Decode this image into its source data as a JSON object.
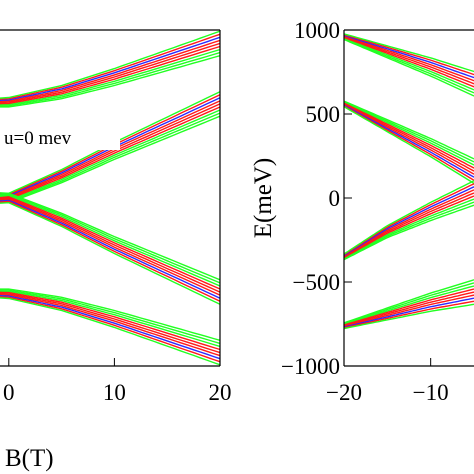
{
  "chart_data": [
    {
      "type": "line",
      "xlabel": "B(T)",
      "ylabel": "",
      "xlim": [
        -5,
        20
      ],
      "ylim": [
        -1000,
        1000
      ],
      "xticks": [
        {
          "value": 0,
          "label": "0"
        },
        {
          "value": 10,
          "label": "10"
        },
        {
          "value": 20,
          "label": "20"
        }
      ],
      "annotation": "u=0 mev",
      "grid": false,
      "series_colors": {
        "red": "#ff1a1a",
        "green": "#22ff22",
        "blue": "#2a2aff"
      },
      "band_groups": [
        {
          "name": "",
          "x": [
            -5,
            0,
            5,
            10,
            15,
            20
          ],
          "y": [
            560,
            570,
            630,
            720,
            820,
            920
          ]
        },
        {
          "name": "",
          "x": [
            -5,
            0,
            5,
            10,
            15,
            20
          ],
          "y": [
            -560,
            -570,
            -630,
            -720,
            -820,
            -920
          ]
        },
        {
          "name": "",
          "x": [
            -5,
            0,
            5,
            10,
            15,
            20
          ],
          "y": [
            30,
            0,
            130,
            280,
            420,
            560
          ]
        },
        {
          "name": "",
          "x": [
            -5,
            0,
            5,
            10,
            15,
            20
          ],
          "y": [
            -30,
            0,
            -130,
            -280,
            -420,
            -560
          ]
        }
      ]
    },
    {
      "type": "line",
      "xlabel": "",
      "ylabel": "E(meV)",
      "xlim": [
        -20,
        -5
      ],
      "ylim": [
        -1000,
        1000
      ],
      "xticks": [
        {
          "value": -20,
          "label": "−20"
        },
        {
          "value": -10,
          "label": "−10"
        }
      ],
      "yticks": [
        {
          "value": 1000,
          "label": "1000"
        },
        {
          "value": 500,
          "label": "500"
        },
        {
          "value": 0,
          "label": "0"
        },
        {
          "value": -500,
          "label": "−500"
        },
        {
          "value": -1000,
          "label": "−1000"
        }
      ],
      "grid": false,
      "band_groups": [
        {
          "name": "",
          "x": [
            -20,
            -15,
            -10,
            -5
          ],
          "y": [
            960,
            870,
            780,
            680
          ]
        },
        {
          "name": "",
          "x": [
            -20,
            -15,
            -10,
            -5
          ],
          "y": [
            560,
            430,
            300,
            160
          ]
        },
        {
          "name": "",
          "x": [
            -20,
            -15,
            -10,
            -5
          ],
          "y": [
            -350,
            -200,
            -80,
            30
          ]
        },
        {
          "name": "",
          "x": [
            -20,
            -15,
            -10,
            -5
          ],
          "y": [
            -760,
            -690,
            -620,
            -560
          ]
        }
      ]
    }
  ]
}
